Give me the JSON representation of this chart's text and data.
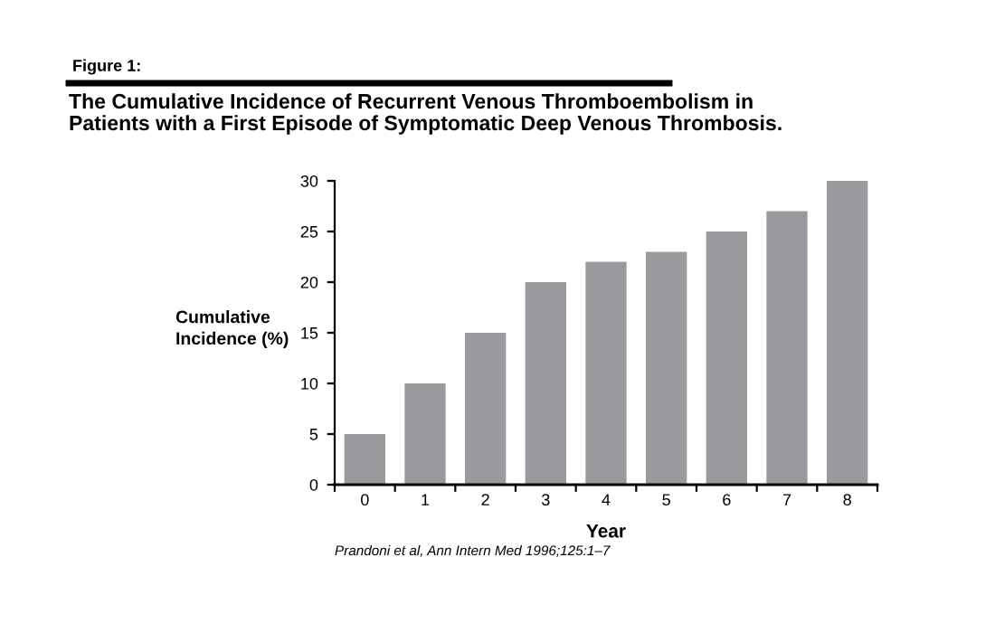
{
  "chart_data": {
    "type": "bar",
    "title": "Figure 1:",
    "subtitle": "The Cumulative Incidence of Recurrent Venous Thromboembolism in\nPatients with a First Episode of Symptomatic Deep Venous Thrombosis.",
    "xlabel": "Year",
    "ylabel": "Cumulative\nIncidence (%)",
    "categories": [
      "0",
      "1",
      "2",
      "3",
      "4",
      "5",
      "6",
      "7",
      "8"
    ],
    "values": [
      5,
      10,
      15,
      20,
      22,
      23,
      25,
      27,
      30
    ],
    "color": "#9a9a9e",
    "ylim": [
      0,
      30
    ],
    "yticks": [
      0,
      5,
      10,
      15,
      20,
      25,
      30
    ],
    "grid": false,
    "legend": false,
    "annotations": [
      "Prandoni et al, Ann Intern Med 1996;125:1–7"
    ]
  }
}
